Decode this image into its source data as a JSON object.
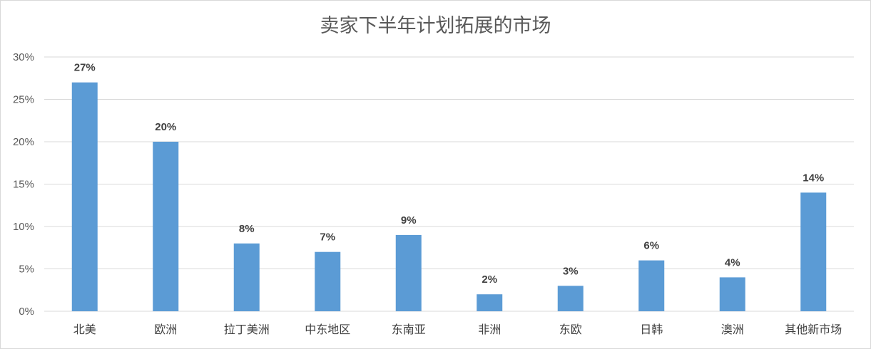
{
  "chart_data": {
    "type": "bar",
    "title": "卖家下半年计划拓展的市场",
    "categories": [
      "北美",
      "欧洲",
      "拉丁美洲",
      "中东地区",
      "东南亚",
      "非洲",
      "东欧",
      "日韩",
      "澳洲",
      "其他新市场"
    ],
    "values": [
      27,
      20,
      8,
      7,
      9,
      2,
      3,
      6,
      4,
      14
    ],
    "data_labels": [
      "27%",
      "20%",
      "8%",
      "7%",
      "9%",
      "2%",
      "3%",
      "6%",
      "4%",
      "14%"
    ],
    "yticks": [
      "0%",
      "5%",
      "10%",
      "15%",
      "20%",
      "25%",
      "30%"
    ],
    "ylim": [
      0,
      30
    ],
    "xlabel": "",
    "ylabel": "",
    "grid": true,
    "legend": "none",
    "bar_color": "#5b9bd5",
    "grid_color": "#d9d9d9"
  }
}
